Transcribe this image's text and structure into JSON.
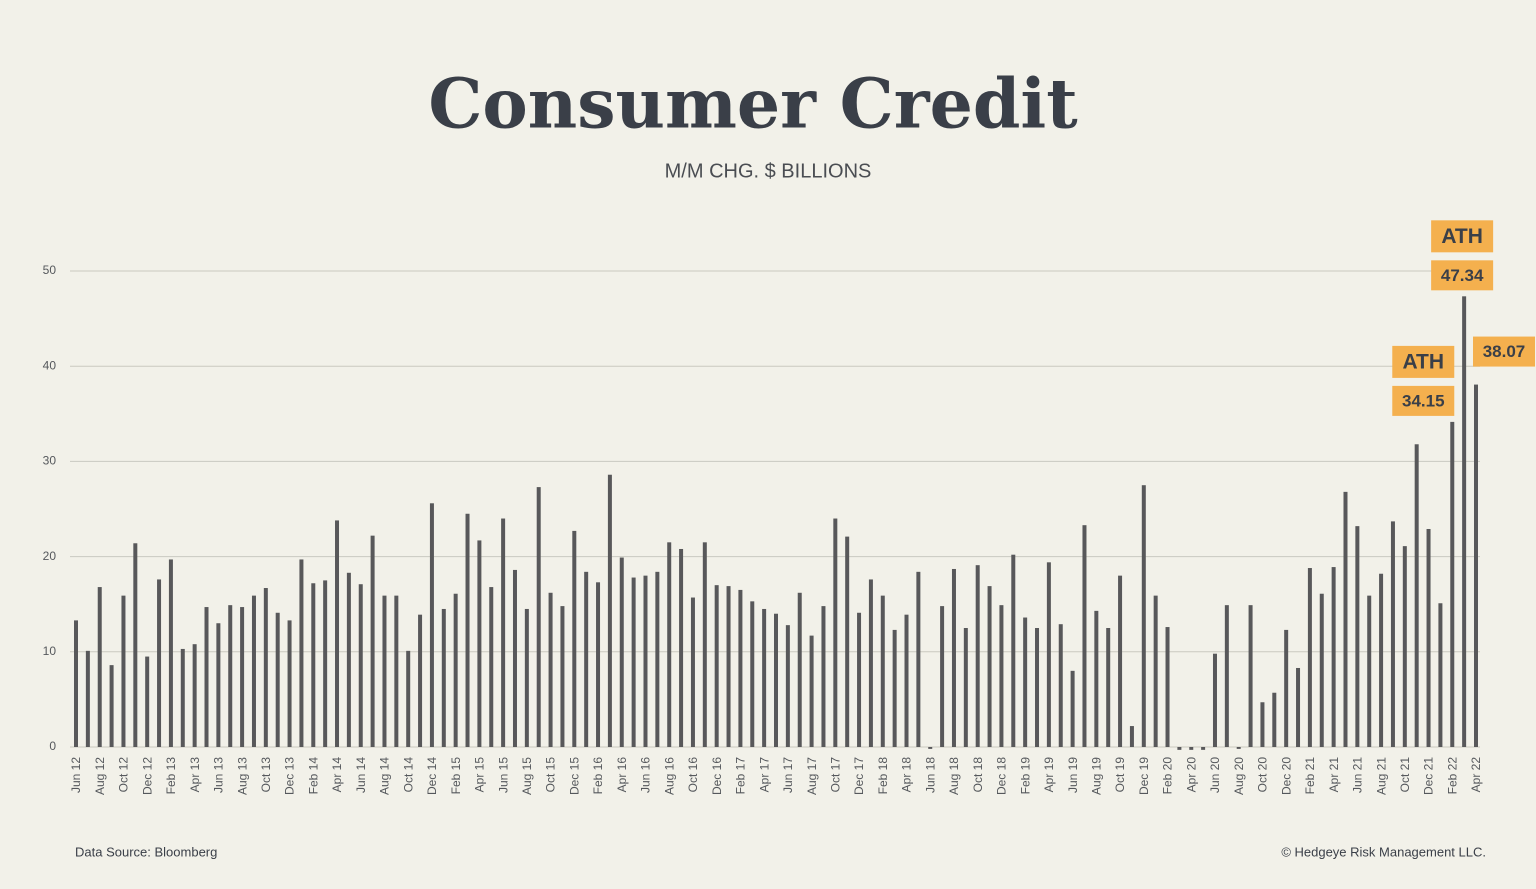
{
  "chart_data": {
    "type": "bar",
    "title": "Consumer Credit",
    "subtitle": "M/M CHG. $ BILLIONS",
    "source": "Data Source: Bloomberg",
    "copyright": "© Hedgeye Risk Management LLC.",
    "color": "#58585a",
    "label_color": "#f4b04e",
    "grid": true,
    "ylim": [
      0,
      50
    ],
    "yticks": [
      0,
      10,
      20,
      30,
      40,
      50
    ],
    "annotations": [
      "ATH",
      "ATH"
    ],
    "categories": [
      "Jun 12",
      null,
      "Aug 12",
      null,
      "Oct 12",
      null,
      "Dec 12",
      null,
      "Feb 13",
      null,
      "Apr 13",
      null,
      "Jun 13",
      null,
      "Aug 13",
      null,
      "Oct 13",
      null,
      "Dec 13",
      null,
      "Feb 14",
      null,
      "Apr 14",
      null,
      "Jun 14",
      null,
      "Aug 14",
      null,
      "Oct 14",
      null,
      "Dec 14",
      null,
      "Feb 15",
      null,
      "Apr 15",
      null,
      "Jun 15",
      null,
      "Aug 15",
      null,
      "Oct 15",
      null,
      "Dec 15",
      null,
      "Feb 16",
      null,
      "Apr 16",
      null,
      "Jun 16",
      null,
      "Aug 16",
      null,
      "Oct 16",
      null,
      "Dec 16",
      null,
      "Feb 17",
      null,
      "Apr 17",
      null,
      "Jun 17",
      null,
      "Aug 17",
      null,
      "Oct 17",
      null,
      "Dec 17",
      null,
      "Feb 18",
      null,
      "Apr 18",
      null,
      "Jun 18",
      null,
      "Aug 18",
      null,
      "Oct 18",
      null,
      "Dec 18",
      null,
      "Feb 19",
      null,
      "Apr 19",
      null,
      "Jun 19",
      null,
      "Aug 19",
      null,
      "Oct 19",
      null,
      "Dec 19",
      null,
      "Feb 20",
      null,
      "Apr 20",
      null,
      "Jun 20",
      null,
      "Aug 20",
      null,
      "Oct 20",
      null,
      "Dec 20",
      null,
      "Feb 21",
      null,
      "Apr 21",
      null,
      "Jun 21",
      null,
      "Aug 21",
      null,
      "Oct 21",
      null,
      "Dec 21",
      null,
      "Feb 22",
      null,
      "Apr 22"
    ],
    "values": [
      13.3,
      10.1,
      16.8,
      8.6,
      15.9,
      21.4,
      9.5,
      17.6,
      19.7,
      10.3,
      10.8,
      14.7,
      13.0,
      14.9,
      14.7,
      15.9,
      16.7,
      14.1,
      13.3,
      19.7,
      17.2,
      17.5,
      23.8,
      18.3,
      17.1,
      22.2,
      15.9,
      15.9,
      10.1,
      13.9,
      25.6,
      14.5,
      16.1,
      24.5,
      21.7,
      16.8,
      24.0,
      18.6,
      14.5,
      27.3,
      16.2,
      14.8,
      22.7,
      18.4,
      17.3,
      28.6,
      19.9,
      17.8,
      18.0,
      18.4,
      21.5,
      20.8,
      15.7,
      21.5,
      17.0,
      16.9,
      16.5,
      15.3,
      14.5,
      14.0,
      12.8,
      16.2,
      11.7,
      14.8,
      24.0,
      22.1,
      14.1,
      17.6,
      15.9,
      12.3,
      13.9,
      18.4,
      -0.2,
      14.8,
      18.7,
      12.5,
      19.1,
      16.9,
      14.9,
      20.2,
      13.6,
      12.5,
      19.4,
      12.9,
      8.0,
      23.3,
      14.3,
      12.5,
      18.0,
      2.2,
      27.5,
      15.9,
      12.6,
      -0.3,
      -0.3,
      -0.3,
      9.8,
      14.9,
      -0.2,
      14.9,
      4.7,
      5.7,
      12.3,
      8.3,
      18.8,
      16.1,
      18.9,
      26.8,
      23.2,
      15.9,
      18.2,
      23.7,
      21.1,
      31.8,
      22.9,
      15.1,
      34.15,
      47.34,
      38.07
    ],
    "value_labels": [
      null,
      null,
      null,
      null,
      null,
      null,
      null,
      null,
      null,
      null,
      null,
      null,
      null,
      null,
      null,
      null,
      null,
      null,
      null,
      null,
      null,
      null,
      null,
      null,
      null,
      null,
      null,
      null,
      null,
      null,
      null,
      null,
      null,
      null,
      null,
      null,
      null,
      null,
      null,
      null,
      null,
      null,
      null,
      null,
      null,
      null,
      null,
      null,
      null,
      null,
      null,
      null,
      null,
      null,
      null,
      null,
      null,
      null,
      null,
      null,
      null,
      null,
      null,
      null,
      null,
      null,
      null,
      null,
      null,
      null,
      null,
      null,
      null,
      null,
      null,
      null,
      null,
      null,
      null,
      null,
      null,
      null,
      null,
      null,
      null,
      null,
      null,
      null,
      null,
      null,
      null,
      null,
      null,
      null,
      null,
      null,
      null,
      null,
      null,
      null,
      null,
      null,
      null,
      null,
      null,
      null,
      null,
      null,
      null,
      null,
      null,
      null,
      null,
      null,
      null,
      null,
      "34.15",
      "47.34",
      "38.07"
    ]
  }
}
